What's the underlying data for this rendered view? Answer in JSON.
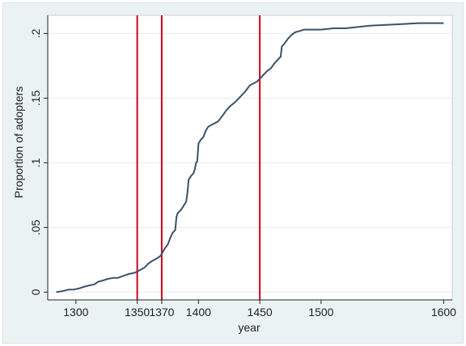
{
  "chart_data": {
    "type": "line",
    "title": "",
    "xlabel": "year",
    "ylabel": "Proportion of adopters",
    "xlim": [
      1277,
      1607
    ],
    "ylim": [
      -0.006,
      0.214
    ],
    "x_ticks": [
      {
        "value": 1300,
        "label": "1300"
      },
      {
        "value": 1350,
        "label": "1350"
      },
      {
        "value": 1370,
        "label": "1370"
      },
      {
        "value": 1400,
        "label": "1400"
      },
      {
        "value": 1450,
        "label": "1450"
      },
      {
        "value": 1500,
        "label": "1500"
      },
      {
        "value": 1600,
        "label": "1600"
      }
    ],
    "y_ticks": [
      {
        "value": 0,
        "label": "0"
      },
      {
        "value": 0.05,
        "label": ".05"
      },
      {
        "value": 0.1,
        "label": ".1"
      },
      {
        "value": 0.15,
        "label": ".15"
      },
      {
        "value": 0.2,
        "label": ".2"
      }
    ],
    "grid": true,
    "reference_lines": [
      {
        "x": 1350,
        "color": "#d0021b"
      },
      {
        "x": 1370,
        "color": "#d0021b"
      },
      {
        "x": 1450,
        "color": "#d0021b"
      }
    ],
    "series": [
      {
        "name": "Proportion of adopters",
        "color": "#3b5268",
        "x": [
          1284,
          1290,
          1294,
          1298,
          1303,
          1306,
          1310,
          1315,
          1318,
          1322,
          1325,
          1330,
          1334,
          1340,
          1343,
          1348,
          1352,
          1356,
          1359,
          1362,
          1366,
          1369,
          1372,
          1375,
          1377,
          1379,
          1381,
          1382,
          1383,
          1386,
          1388,
          1390,
          1391,
          1392,
          1394,
          1396,
          1397,
          1398,
          1399,
          1400,
          1402,
          1404,
          1406,
          1408,
          1410,
          1412,
          1416,
          1420,
          1423,
          1426,
          1430,
          1434,
          1438,
          1442,
          1446,
          1448,
          1450,
          1453,
          1456,
          1459,
          1462,
          1465,
          1467,
          1468,
          1470,
          1473,
          1476,
          1479,
          1483,
          1486,
          1490,
          1500,
          1510,
          1520,
          1540,
          1560,
          1580,
          1600
        ],
        "y": [
          0.0,
          0.001,
          0.002,
          0.002,
          0.003,
          0.004,
          0.005,
          0.006,
          0.008,
          0.009,
          0.01,
          0.011,
          0.011,
          0.013,
          0.014,
          0.015,
          0.017,
          0.019,
          0.022,
          0.024,
          0.026,
          0.028,
          0.033,
          0.037,
          0.042,
          0.046,
          0.048,
          0.058,
          0.061,
          0.064,
          0.067,
          0.07,
          0.077,
          0.087,
          0.09,
          0.092,
          0.095,
          0.1,
          0.101,
          0.115,
          0.118,
          0.12,
          0.125,
          0.128,
          0.129,
          0.13,
          0.132,
          0.137,
          0.141,
          0.144,
          0.147,
          0.151,
          0.155,
          0.16,
          0.162,
          0.163,
          0.165,
          0.168,
          0.171,
          0.173,
          0.177,
          0.18,
          0.182,
          0.19,
          0.192,
          0.196,
          0.199,
          0.201,
          0.202,
          0.203,
          0.203,
          0.203,
          0.204,
          0.204,
          0.206,
          0.207,
          0.208,
          0.208
        ]
      }
    ]
  }
}
